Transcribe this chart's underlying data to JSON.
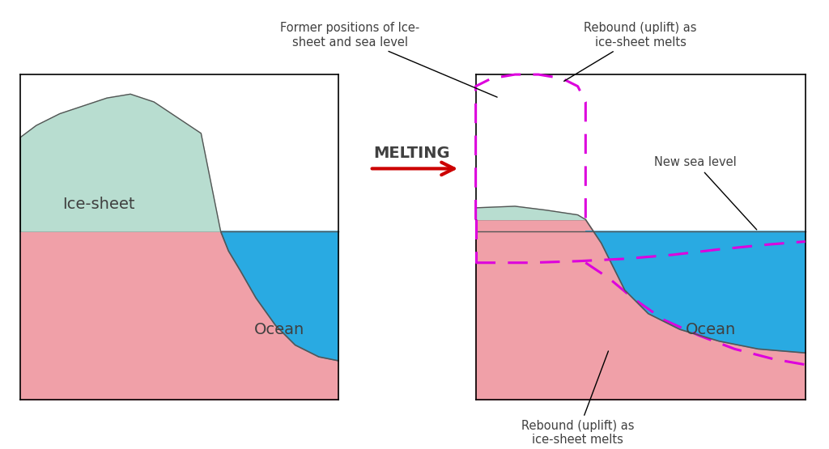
{
  "bg_color": "#ffffff",
  "pink_color": "#f0a0a8",
  "blue_color": "#29aae2",
  "ice_color": "#b8ddd0",
  "magenta_color": "#dd00dd",
  "text_color": "#404040",
  "arrow_color": "#cc0000",
  "melting_text": "MELTING",
  "ice_sheet_label": "Ice-sheet",
  "ocean_label_left": "Ocean",
  "ocean_label_right": "Ocean",
  "former_positions_label": "Former positions of Ice-\nsheet and sea level",
  "rebound_top_label": "Rebound (uplift) as\nice-sheet melts",
  "new_sea_level_label": "New sea level",
  "rebound_bottom_label": "Rebound (uplift) as\nice-sheet melts"
}
